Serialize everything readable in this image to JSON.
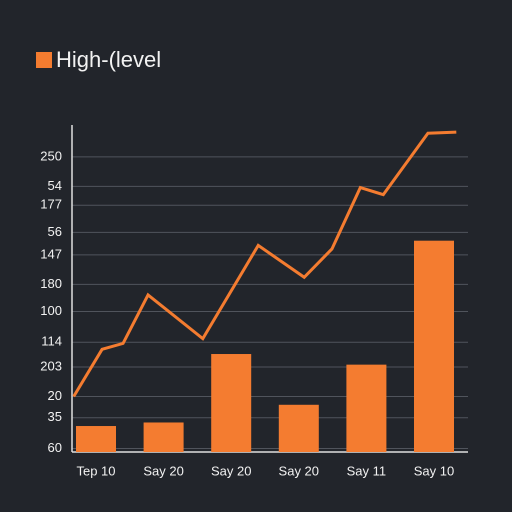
{
  "chart_data": {
    "type": "bar-line",
    "legend_label": "High-(level",
    "color": "#f47c30",
    "categories": [
      "Tep 10",
      "Say 20",
      "Say 20",
      "Say 20",
      "Say 11",
      "Say 10"
    ],
    "values": [
      22,
      25,
      83,
      40,
      74,
      179
    ],
    "line": {
      "x": [
        -0.33,
        0.09,
        0.4,
        0.77,
        1.58,
        2.4,
        3.08,
        3.49,
        3.91,
        4.25,
        4.91,
        5.33
      ],
      "values": [
        47,
        87,
        92,
        133,
        96,
        175,
        148,
        172,
        224,
        218,
        270,
        271
      ]
    },
    "ylim": [
      0,
      277
    ],
    "yticks": [
      250,
      {
        "value": 225,
        "label": "54"
      },
      {
        "value": 209,
        "label": "177"
      },
      {
        "value": 186,
        "label": "56"
      },
      {
        "value": 167,
        "label": "147"
      },
      {
        "value": 142,
        "label": "180"
      },
      {
        "value": 119,
        "label": "100"
      },
      {
        "value": 93,
        "label": "114"
      },
      {
        "value": 72,
        "label": "203"
      },
      {
        "value": 47,
        "label": "20"
      },
      {
        "value": 29,
        "label": "35"
      },
      {
        "value": 3,
        "label": "60"
      }
    ],
    "grid": true
  }
}
